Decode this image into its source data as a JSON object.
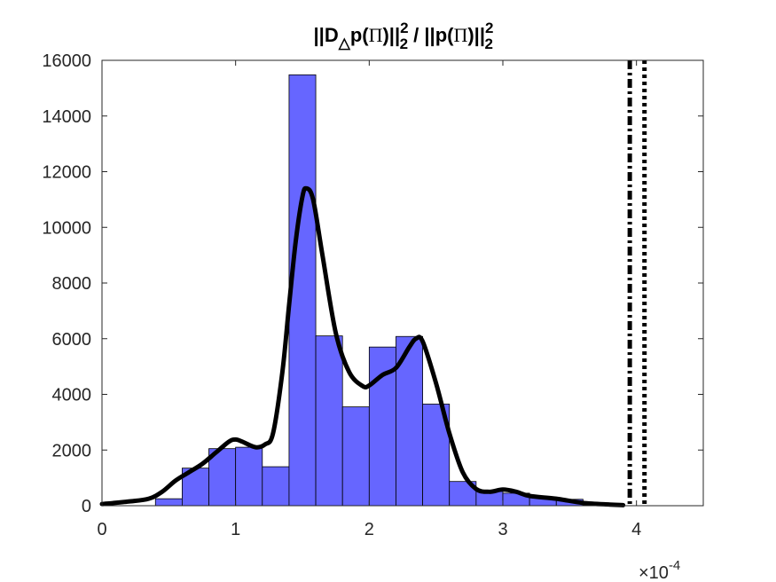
{
  "chart_data": {
    "type": "bar",
    "title": {
      "norm_open": "||D",
      "delta_sub": "△",
      "p_open": "p(",
      "pi_symbol": "Π",
      "close_norm": ")||",
      "sup": "2",
      "sub": "2",
      "divider": " / ||p(",
      "pi_symbol_2": "Π",
      "close_norm_2": ")||",
      "sup_2": "2",
      "sub_2": "2"
    },
    "xlabel": "",
    "ylabel": "",
    "xlim": [
      0,
      4.5
    ],
    "ylim": [
      0,
      16000
    ],
    "x_scale_exponent": "-4",
    "x_scale_prefix": "×10",
    "x_ticks": [
      0,
      1,
      2,
      3,
      4
    ],
    "x_tick_labels": [
      "0",
      "1",
      "2",
      "3",
      "4"
    ],
    "y_ticks": [
      0,
      2000,
      4000,
      6000,
      8000,
      10000,
      12000,
      14000,
      16000
    ],
    "y_tick_labels": [
      "0",
      "2000",
      "4000",
      "6000",
      "8000",
      "10000",
      "12000",
      "14000",
      "16000"
    ],
    "grid": false,
    "bar_color": "#6666ff",
    "line_color": "#000000",
    "bin_width": 0.2,
    "bins": [
      {
        "x0": 0.4,
        "value": 250
      },
      {
        "x0": 0.6,
        "value": 1350
      },
      {
        "x0": 0.8,
        "value": 2050
      },
      {
        "x0": 1.0,
        "value": 2100
      },
      {
        "x0": 1.2,
        "value": 1400
      },
      {
        "x0": 1.4,
        "value": 15480
      },
      {
        "x0": 1.6,
        "value": 6100
      },
      {
        "x0": 1.8,
        "value": 3550
      },
      {
        "x0": 2.0,
        "value": 5700
      },
      {
        "x0": 2.2,
        "value": 6080
      },
      {
        "x0": 2.4,
        "value": 3650
      },
      {
        "x0": 2.6,
        "value": 870
      },
      {
        "x0": 2.8,
        "value": 550
      },
      {
        "x0": 3.0,
        "value": 450
      },
      {
        "x0": 3.2,
        "value": 300
      },
      {
        "x0": 3.4,
        "value": 230
      },
      {
        "x0": 3.6,
        "value": 60
      }
    ],
    "density_curve": {
      "x": [
        0,
        0.2,
        0.35,
        0.45,
        0.55,
        0.65,
        0.75,
        0.85,
        0.95,
        1.0,
        1.05,
        1.15,
        1.22,
        1.28,
        1.35,
        1.4,
        1.45,
        1.5,
        1.53,
        1.58,
        1.65,
        1.75,
        1.85,
        1.95,
        2.0,
        2.1,
        2.2,
        2.3,
        2.35,
        2.4,
        2.5,
        2.6,
        2.7,
        2.8,
        2.9,
        3.0,
        3.1,
        3.2,
        3.4,
        3.6,
        3.8,
        3.9
      ],
      "y": [
        60,
        150,
        250,
        500,
        900,
        1200,
        1500,
        1900,
        2300,
        2380,
        2300,
        2100,
        2200,
        2600,
        4800,
        7200,
        9500,
        11100,
        11400,
        11000,
        9000,
        6200,
        4800,
        4300,
        4320,
        4700,
        4950,
        5700,
        6000,
        5900,
        4400,
        2600,
        1200,
        600,
        500,
        580,
        500,
        350,
        250,
        100,
        40,
        20
      ]
    },
    "vertical_lines": [
      {
        "x": 3.95,
        "style": "dash-dot"
      },
      {
        "x": 4.06,
        "style": "dotted"
      }
    ]
  }
}
